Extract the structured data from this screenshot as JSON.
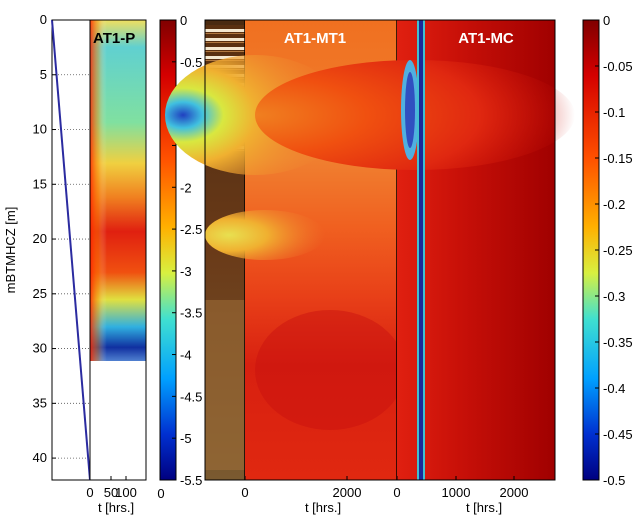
{
  "chart_data": [
    {
      "type": "line",
      "ylabel": "mBTMHCZ [m]",
      "ylim": [
        0,
        42
      ],
      "yticks": [
        0,
        5,
        10,
        15,
        20,
        25,
        30,
        35,
        40
      ],
      "series": [
        {
          "x": [
            0,
            1
          ],
          "y": [
            0,
            42
          ]
        }
      ]
    },
    {
      "type": "heatmap",
      "title": "AT1-P",
      "xticks": [
        "0",
        "50",
        "100"
      ],
      "ylim": [
        0,
        31
      ],
      "colorbar": {
        "min": -5.5,
        "max": 0,
        "ticks": [
          "0",
          "-0.5",
          "-1",
          "-1.5",
          "-2",
          "-2.5",
          "-3",
          "-3.5",
          "-4",
          "-4.5",
          "-5",
          "-5.5"
        ]
      }
    },
    {
      "type": "heatmap",
      "title": "AT1-MT1",
      "xticks": [
        "0",
        "2000"
      ]
    },
    {
      "type": "heatmap",
      "title": "AT1-MC",
      "xticks": [
        "0",
        "1000",
        "2000"
      ],
      "colorbar": {
        "min": -0.5,
        "max": 0,
        "ticks": [
          "0",
          "-0.05",
          "-0.1",
          "-0.15",
          "-0.2",
          "-0.25",
          "-0.3",
          "-0.35",
          "-0.4",
          "-0.45",
          "-0.5"
        ]
      }
    }
  ],
  "xlabel_left": "t [hrs.]",
  "xlabel_mid": "t [hrs.]",
  "xlabel_right": "t [hrs.]",
  "extra_tick": "0",
  "colors": {
    "line": "#2b2ba0",
    "deep_red": "#8b0000",
    "blue": "#1a2a9a"
  }
}
